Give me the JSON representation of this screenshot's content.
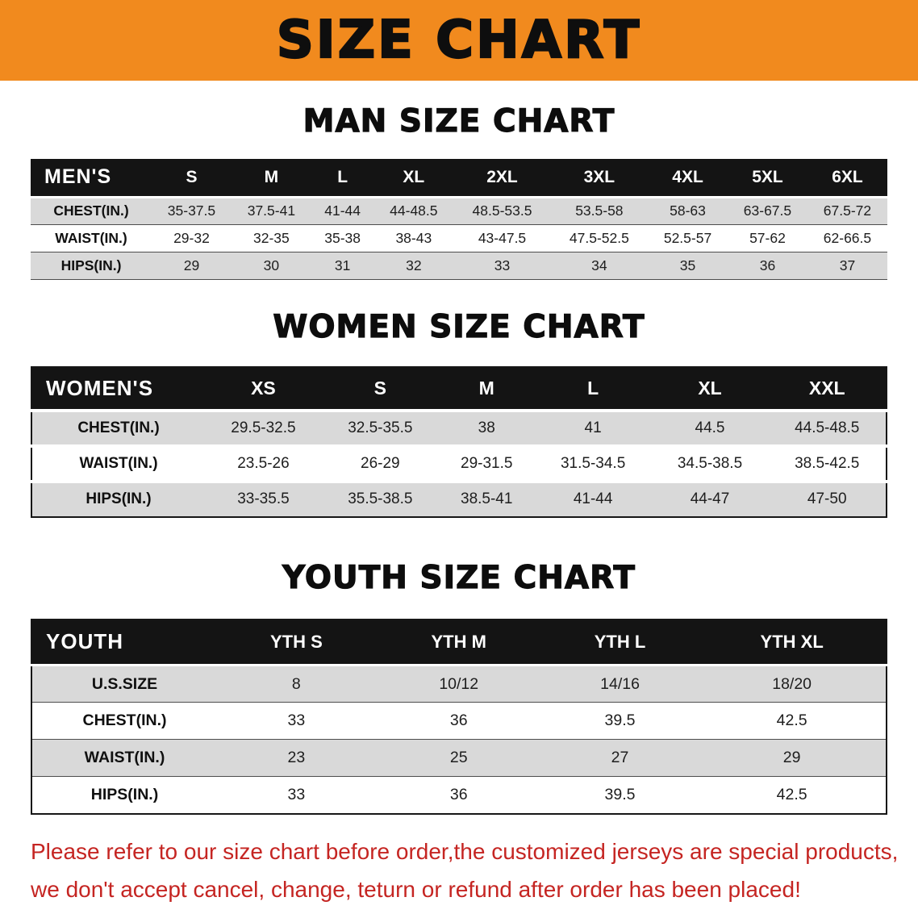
{
  "banner": {
    "title": "SIZE CHART"
  },
  "colors": {
    "banner_bg": "#f18a1e",
    "table_header_bg": "#141414",
    "stripe_gray": "#d9d9d9",
    "disclaimer_red": "#c52522"
  },
  "sections": [
    {
      "heading": "MAN SIZE CHART",
      "table": {
        "header": [
          "MEN'S",
          "S",
          "M",
          "L",
          "XL",
          "2XL",
          "3XL",
          "4XL",
          "5XL",
          "6XL"
        ],
        "rows": [
          [
            "CHEST(IN.)",
            "35-37.5",
            "37.5-41",
            "41-44",
            "44-48.5",
            "48.5-53.5",
            "53.5-58",
            "58-63",
            "63-67.5",
            "67.5-72"
          ],
          [
            "WAIST(IN.)",
            "29-32",
            "32-35",
            "35-38",
            "38-43",
            "43-47.5",
            "47.5-52.5",
            "52.5-57",
            "57-62",
            "62-66.5"
          ],
          [
            "HIPS(IN.)",
            "29",
            "30",
            "31",
            "32",
            "33",
            "34",
            "35",
            "36",
            "37"
          ]
        ]
      }
    },
    {
      "heading": "WOMEN SIZE CHART",
      "table": {
        "header": [
          "WOMEN'S",
          "XS",
          "S",
          "M",
          "L",
          "XL",
          "XXL"
        ],
        "rows": [
          [
            "CHEST(IN.)",
            "29.5-32.5",
            "32.5-35.5",
            "38",
            "41",
            "44.5",
            "44.5-48.5"
          ],
          [
            "WAIST(IN.)",
            "23.5-26",
            "26-29",
            "29-31.5",
            "31.5-34.5",
            "34.5-38.5",
            "38.5-42.5"
          ],
          [
            "HIPS(IN.)",
            "33-35.5",
            "35.5-38.5",
            "38.5-41",
            "41-44",
            "44-47",
            "47-50"
          ]
        ]
      }
    },
    {
      "heading": "YOUTH SIZE CHART",
      "table": {
        "header": [
          "YOUTH",
          "YTH S",
          "YTH M",
          "YTH L",
          "YTH XL"
        ],
        "rows": [
          [
            "U.S.SIZE",
            "8",
            "10/12",
            "14/16",
            "18/20"
          ],
          [
            "CHEST(IN.)",
            "33",
            "36",
            "39.5",
            "42.5"
          ],
          [
            "WAIST(IN.)",
            "23",
            "25",
            "27",
            "29"
          ],
          [
            "HIPS(IN.)",
            "33",
            "36",
            "39.5",
            "42.5"
          ]
        ]
      }
    }
  ],
  "disclaimer": {
    "lines": [
      "Please refer to our size chart before order,the customized jerseys are special products,",
      "we don't accept cancel, change, teturn or refund after order has been placed!"
    ]
  }
}
